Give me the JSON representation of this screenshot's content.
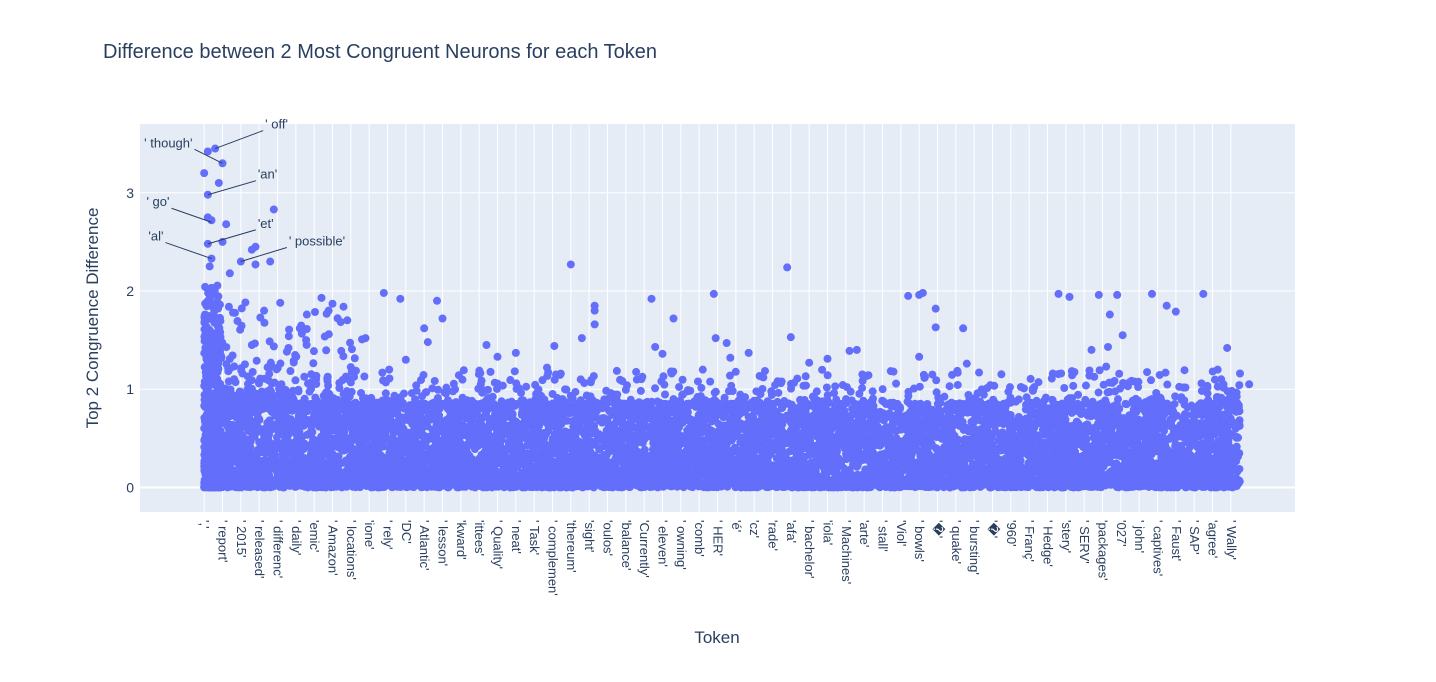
{
  "chart_data": {
    "type": "scatter",
    "title": "Difference between 2 Most Congruent Neurons for each Token",
    "xlabel": "Token",
    "ylabel": "Top 2 Congruence Difference",
    "ylim": [
      -0.25,
      3.7
    ],
    "yticks": [
      0,
      1,
      2,
      3
    ],
    "grid": true,
    "marker_color": "#636efa",
    "background_color": "#e5ecf6",
    "tick_labels": [
      "','",
      "' report'",
      "' 2015'",
      "' released'",
      "' differenc'",
      "' daily'",
      "'emic'",
      "' Amazon'",
      "' locations'",
      "'ione'",
      "' rely'",
      "'DC'",
      "' Atlantic'",
      "' lesson'",
      "'kward'",
      "'ittees'",
      "' Quality'",
      "' neat'",
      "' Task'",
      "' complemen'",
      "'thereum'",
      "'sight'",
      "'oulos'",
      "'balance'",
      "'Currently'",
      "' eleven'",
      "' owning'",
      "'comb'",
      "' HER'",
      "'é'",
      "'cz'",
      "'rade'",
      "'afa'",
      "' bachelor'",
      "'iola'",
      "' Machines'",
      "'arte'",
      "' stall'",
      "'Viol'",
      "' bowls'",
      "'�'",
      "' quake'",
      "' bursting'",
      "'�'",
      "'960'",
      "' Franç'",
      "' Hedge'",
      "'stery'",
      "' SERV'",
      "'packages'",
      "'027'",
      "' john'",
      "' captives'",
      "' Faust'",
      "' SAP'",
      "'agree'",
      "' Wally'"
    ],
    "tick_positions": [
      0,
      100,
      200,
      300,
      400,
      500,
      600,
      700,
      800,
      900,
      1000,
      1100,
      1200,
      1300,
      1400,
      1500,
      1600,
      1700,
      1800,
      1900,
      2000,
      2100,
      2200,
      2300,
      2400,
      2500,
      2600,
      2700,
      2800,
      2900,
      3000,
      3100,
      3200,
      3300,
      3400,
      3500,
      3600,
      3700,
      3800,
      3900,
      4000,
      4100,
      4200,
      4300,
      4400,
      4500,
      4600,
      4700,
      4800,
      4900,
      5000,
      5100,
      5200,
      5300,
      5400,
      5500,
      5600
    ],
    "xlim": [
      -350,
      5950
    ],
    "annotations": [
      {
        "text": "' off'",
        "x": 60,
        "y": 3.45
      },
      {
        "text": "' though'",
        "x": 100,
        "y": 3.3
      },
      {
        "text": "'an'",
        "x": 20,
        "y": 2.98
      },
      {
        "text": "' go'",
        "x": 40,
        "y": 2.7
      },
      {
        "text": "'et'",
        "x": 20,
        "y": 2.48
      },
      {
        "text": "'al'",
        "x": 40,
        "y": 2.33
      },
      {
        "text": "' possible'",
        "x": 200,
        "y": 2.3
      }
    ],
    "notable_points": [
      {
        "x": 20,
        "y": 3.42
      },
      {
        "x": 60,
        "y": 3.45
      },
      {
        "x": 100,
        "y": 3.3
      },
      {
        "x": 80,
        "y": 3.1
      },
      {
        "x": 0,
        "y": 3.2
      },
      {
        "x": 20,
        "y": 2.98
      },
      {
        "x": 40,
        "y": 2.72
      },
      {
        "x": 20,
        "y": 2.75
      },
      {
        "x": 120,
        "y": 2.68
      },
      {
        "x": 380,
        "y": 2.83
      },
      {
        "x": 20,
        "y": 2.48
      },
      {
        "x": 100,
        "y": 2.5
      },
      {
        "x": 40,
        "y": 2.33
      },
      {
        "x": 200,
        "y": 2.3
      },
      {
        "x": 260,
        "y": 2.42
      },
      {
        "x": 280,
        "y": 2.45
      },
      {
        "x": 360,
        "y": 2.3
      },
      {
        "x": 280,
        "y": 2.27
      },
      {
        "x": 30,
        "y": 2.25
      },
      {
        "x": 140,
        "y": 2.18
      },
      {
        "x": 2000,
        "y": 2.27
      },
      {
        "x": 3180,
        "y": 2.24
      },
      {
        "x": 980,
        "y": 1.98
      },
      {
        "x": 1070,
        "y": 1.92
      },
      {
        "x": 1270,
        "y": 1.9
      },
      {
        "x": 2440,
        "y": 1.92
      },
      {
        "x": 2780,
        "y": 1.97
      },
      {
        "x": 4660,
        "y": 1.97
      },
      {
        "x": 5170,
        "y": 1.97
      },
      {
        "x": 5450,
        "y": 1.97
      },
      {
        "x": 4880,
        "y": 1.96
      },
      {
        "x": 4980,
        "y": 1.96
      },
      {
        "x": 4720,
        "y": 1.94
      },
      {
        "x": 3900,
        "y": 1.96
      },
      {
        "x": 3920,
        "y": 1.98
      },
      {
        "x": 3840,
        "y": 1.95
      },
      {
        "x": 2130,
        "y": 1.85
      },
      {
        "x": 2130,
        "y": 1.8
      },
      {
        "x": 2130,
        "y": 1.66
      },
      {
        "x": 5250,
        "y": 1.85
      },
      {
        "x": 5300,
        "y": 1.79
      },
      {
        "x": 3990,
        "y": 1.82
      },
      {
        "x": 3990,
        "y": 1.63
      },
      {
        "x": 2560,
        "y": 1.72
      },
      {
        "x": 4940,
        "y": 1.76
      },
      {
        "x": 4140,
        "y": 1.62
      },
      {
        "x": 2790,
        "y": 1.52
      },
      {
        "x": 2850,
        "y": 1.47
      },
      {
        "x": 2870,
        "y": 1.32
      },
      {
        "x": 3200,
        "y": 1.53
      },
      {
        "x": 3400,
        "y": 1.31
      },
      {
        "x": 3520,
        "y": 1.39
      },
      {
        "x": 3560,
        "y": 1.4
      },
      {
        "x": 3590,
        "y": 1.15
      },
      {
        "x": 2460,
        "y": 1.43
      },
      {
        "x": 2500,
        "y": 1.36
      },
      {
        "x": 2550,
        "y": 1.16
      },
      {
        "x": 2970,
        "y": 1.37
      },
      {
        "x": 3050,
        "y": 1.12
      },
      {
        "x": 4840,
        "y": 1.4
      },
      {
        "x": 4920,
        "y": 1.23
      },
      {
        "x": 4930,
        "y": 1.43
      },
      {
        "x": 5010,
        "y": 1.55
      },
      {
        "x": 3300,
        "y": 1.27
      },
      {
        "x": 3900,
        "y": 1.33
      },
      {
        "x": 4160,
        "y": 1.26
      },
      {
        "x": 5580,
        "y": 1.42
      },
      {
        "x": 5650,
        "y": 1.16
      },
      {
        "x": 5440,
        "y": 1.06
      },
      {
        "x": 5560,
        "y": 1.05
      },
      {
        "x": 5700,
        "y": 1.05
      },
      {
        "x": 1540,
        "y": 1.45
      },
      {
        "x": 1600,
        "y": 1.33
      },
      {
        "x": 1700,
        "y": 1.37
      },
      {
        "x": 2060,
        "y": 1.52
      },
      {
        "x": 1910,
        "y": 1.44
      },
      {
        "x": 1870,
        "y": 1.22
      },
      {
        "x": 1200,
        "y": 1.62
      },
      {
        "x": 1300,
        "y": 1.72
      },
      {
        "x": 1220,
        "y": 1.48
      },
      {
        "x": 1100,
        "y": 1.3
      },
      {
        "x": 640,
        "y": 1.93
      },
      {
        "x": 700,
        "y": 1.87
      },
      {
        "x": 760,
        "y": 1.84
      },
      {
        "x": 560,
        "y": 1.76
      },
      {
        "x": 680,
        "y": 1.56
      },
      {
        "x": 460,
        "y": 1.42
      },
      {
        "x": 880,
        "y": 1.52
      }
    ],
    "dense_band": {
      "y_min": 0,
      "y_max": 0.85,
      "x_min": 0,
      "x_max": 5650
    }
  }
}
